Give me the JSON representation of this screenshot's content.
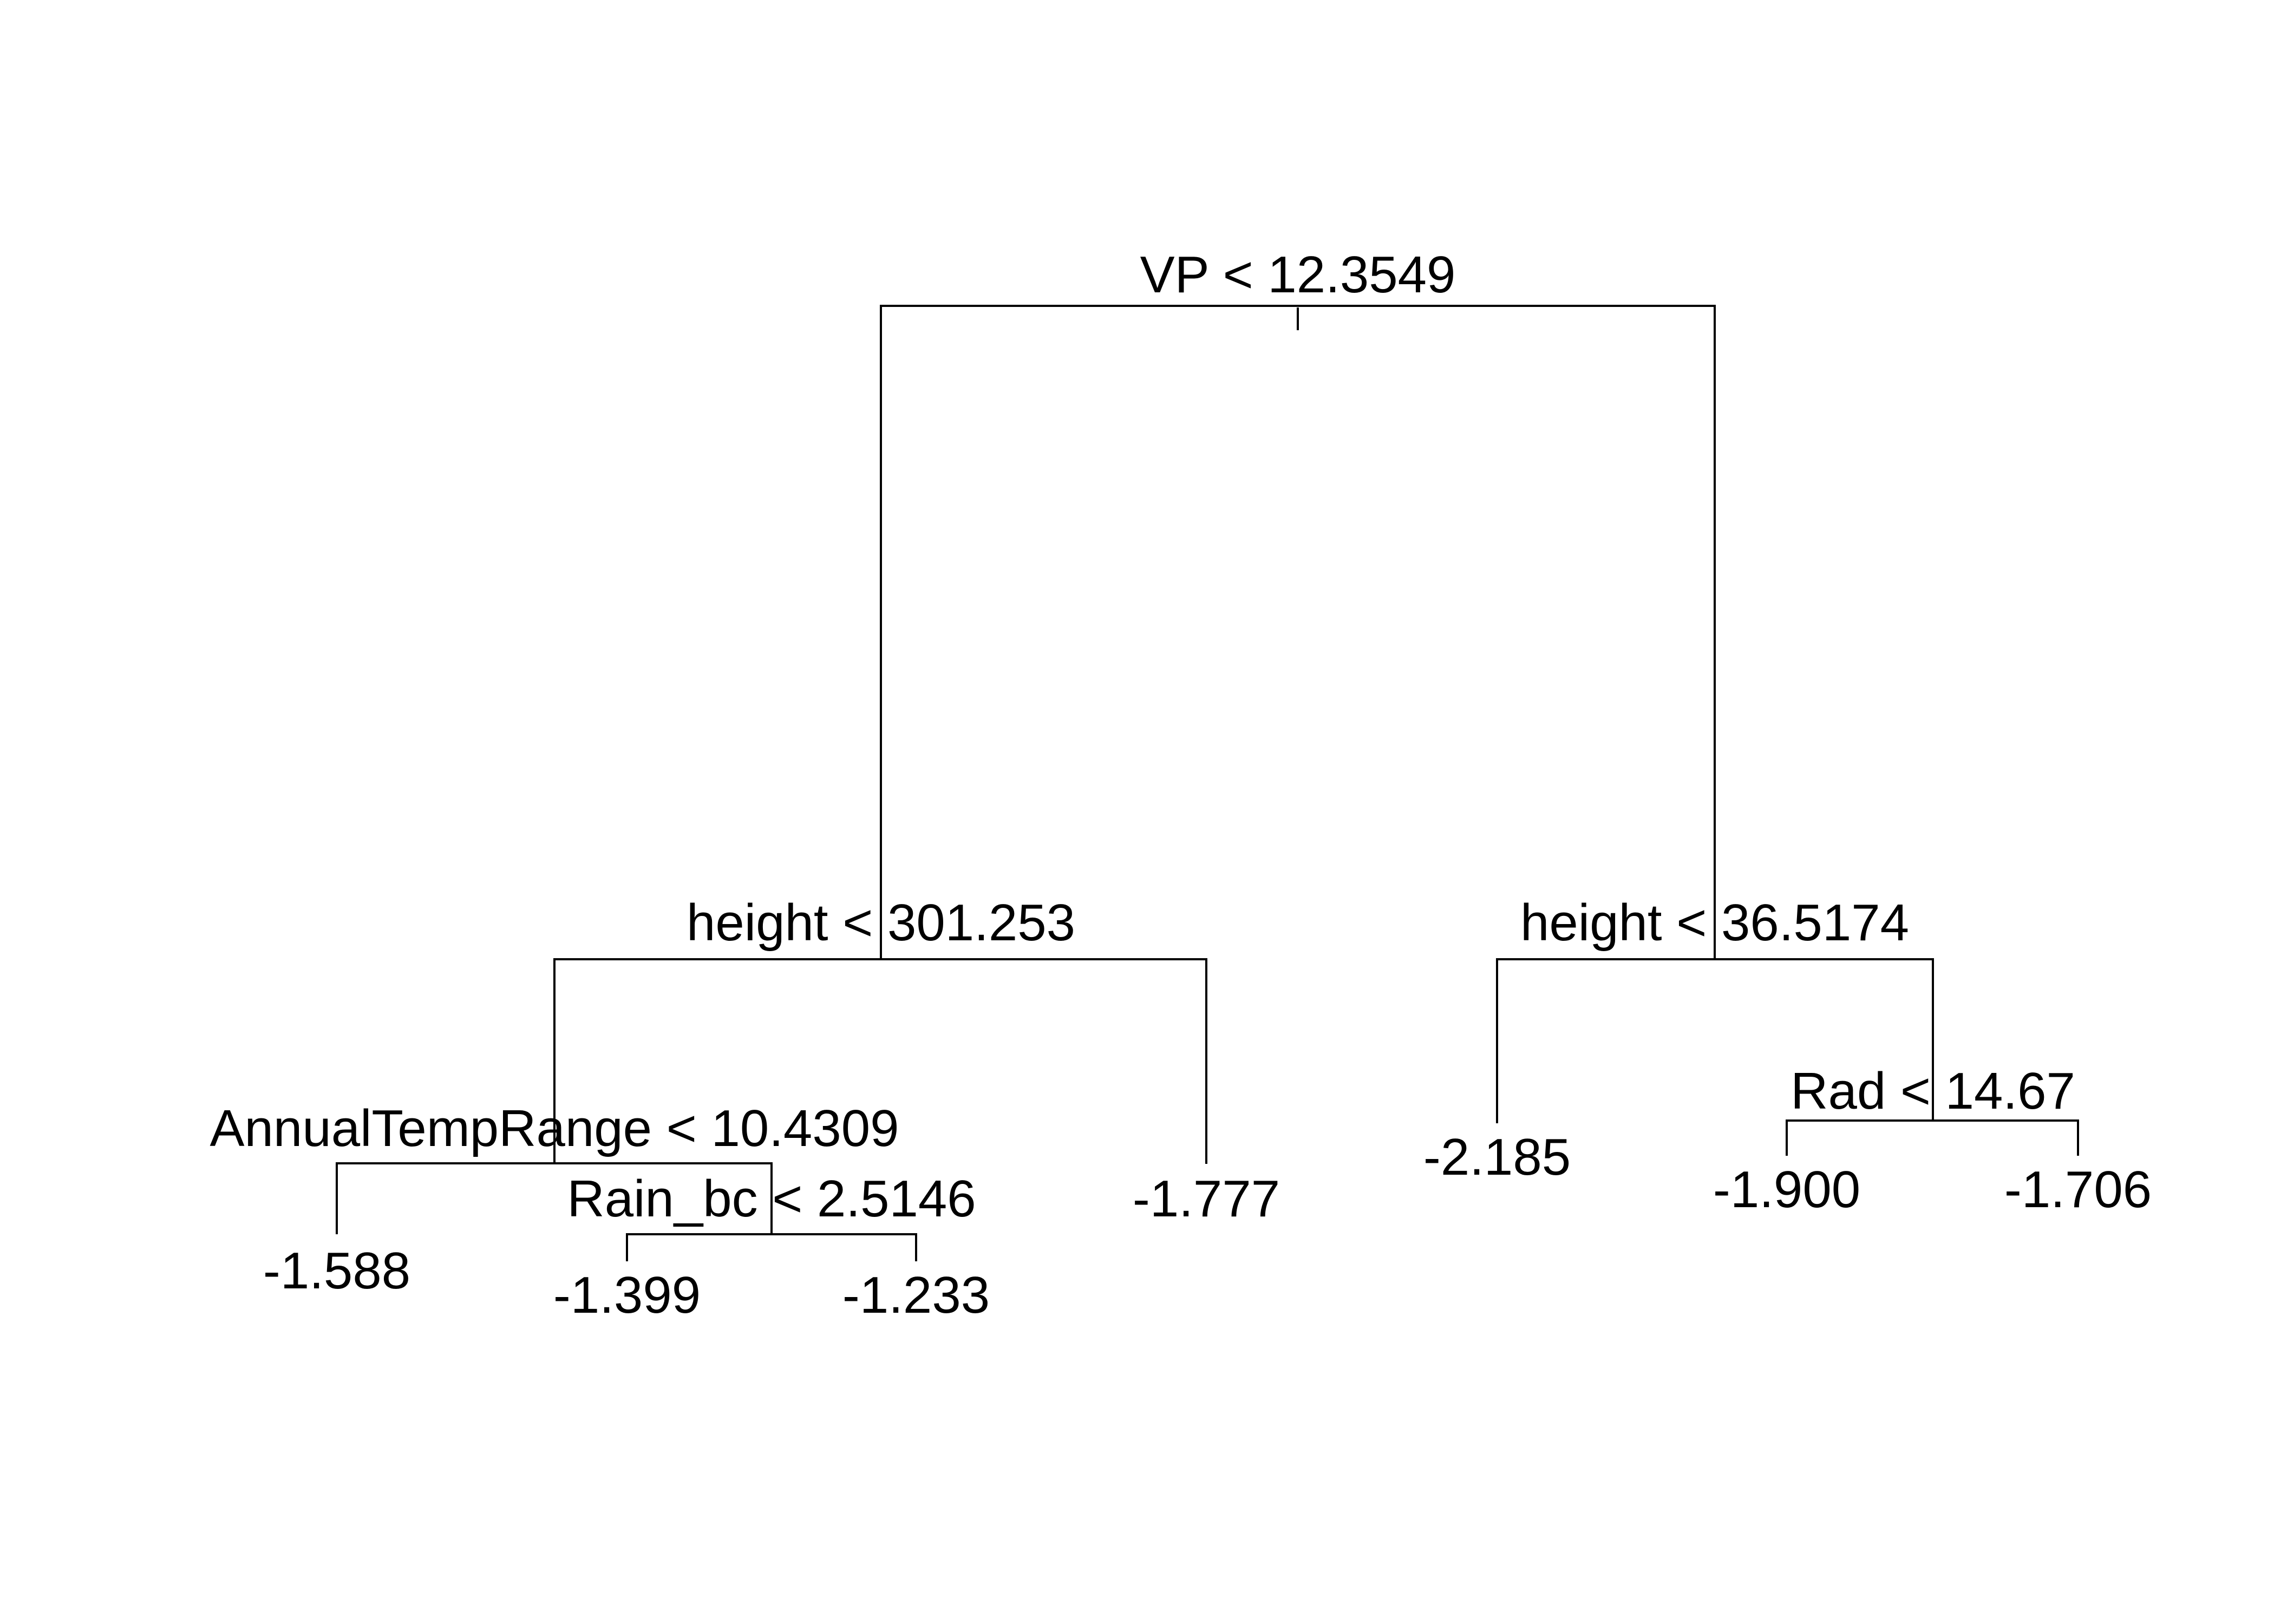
{
  "tree": {
    "root": {
      "split": "VP < 12.3549",
      "left": {
        "split": "height < 301.253",
        "left": {
          "split": "AnnualTempRange < 10.4309",
          "left": {
            "leaf": "-1.588"
          },
          "right": {
            "split": "Rain_bc < 2.5146",
            "left": {
              "leaf": "-1.399"
            },
            "right": {
              "leaf": "-1.233"
            }
          }
        },
        "right": {
          "leaf": "-1.777"
        }
      },
      "right": {
        "split": "height < 36.5174",
        "left": {
          "leaf": "-2.185"
        },
        "right": {
          "split": "Rad < 14.67",
          "left": {
            "leaf": "-1.900"
          },
          "right": {
            "leaf": "-1.706"
          }
        }
      }
    }
  }
}
